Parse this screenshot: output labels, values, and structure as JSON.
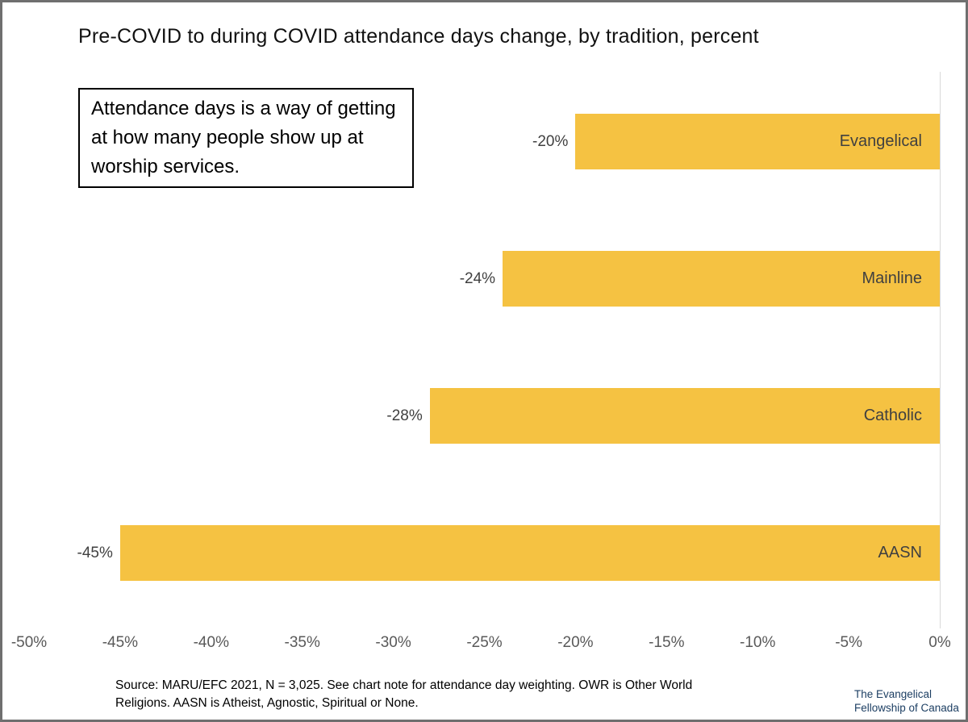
{
  "title": "Pre-COVID to during COVID attendance days change, by tradition, percent",
  "callout": {
    "text": "Attendance days is a way of getting at how many people show up at worship services."
  },
  "chart_data": {
    "type": "bar",
    "orientation": "horizontal",
    "title": "Pre-COVID to during COVID attendance days change, by tradition, percent",
    "categories": [
      "Evangelical",
      "Mainline",
      "Catholic",
      "AASN"
    ],
    "values": [
      -20,
      -24,
      -28,
      -45
    ],
    "data_labels": [
      "-20%",
      "-24%",
      "-28%",
      "-45%"
    ],
    "x_tick_labels": [
      "-50%",
      "-45%",
      "-40%",
      "-35%",
      "-30%",
      "-25%",
      "-20%",
      "-15%",
      "-10%",
      "-5%",
      "0%"
    ],
    "xlim": [
      -50,
      0
    ],
    "bar_color": "#F5C242",
    "value_label_color": "#404040",
    "category_label_color": "#404040",
    "axis_label_color": "#595959",
    "baseline_color": "#d9d9d9",
    "grid": "off",
    "legend": "none"
  },
  "source_note": "Source: MARU/EFC 2021, N = 3,025. See chart note for attendance day weighting. OWR is Other World Religions. AASN is Atheist, Agnostic, Spiritual or None.",
  "logo": {
    "line1": "The Evangelical",
    "line2": "Fellowship of Canada",
    "color": "#1d3f63"
  }
}
